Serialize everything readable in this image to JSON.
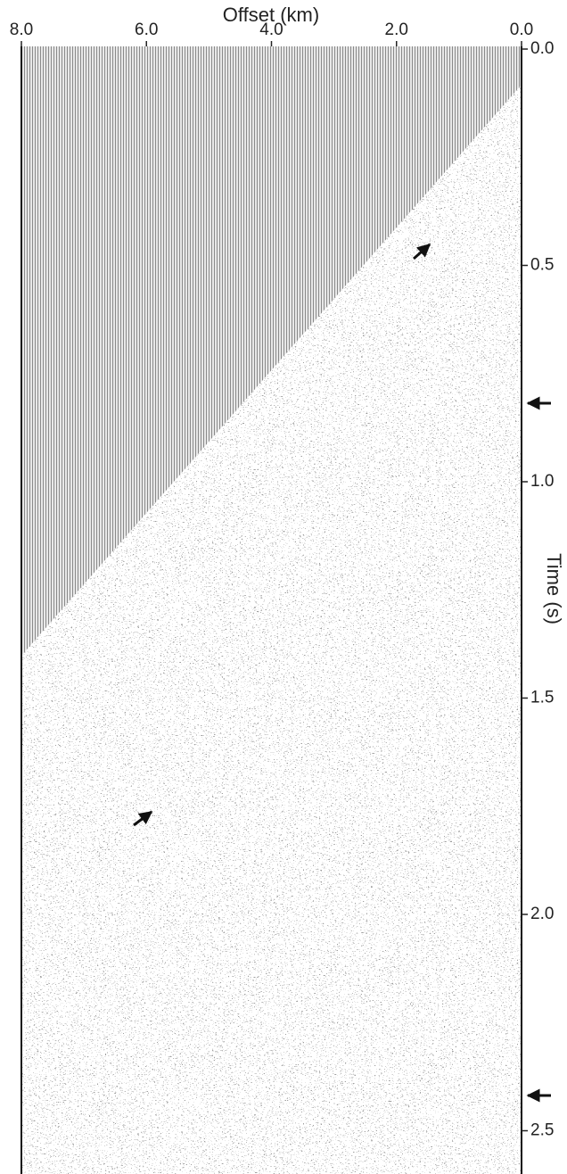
{
  "chart_data": {
    "type": "seismic",
    "x_label": "Offset (km)",
    "y_label": "Time (s)",
    "xlim": [
      8,
      0
    ],
    "ylim": [
      0,
      2.6
    ],
    "xticks": [
      {
        "value": 8,
        "label": "8.0"
      },
      {
        "value": 6,
        "label": "6.0"
      },
      {
        "value": 4,
        "label": "4.0"
      },
      {
        "value": 2,
        "label": "2.0"
      },
      {
        "value": 0,
        "label": "0.0"
      }
    ],
    "yticks": [
      {
        "value": 0,
        "label": "0.0"
      },
      {
        "value": 0.5,
        "label": "0.5"
      },
      {
        "value": 1,
        "label": "1.0"
      },
      {
        "value": 1.5,
        "label": "1.5"
      },
      {
        "value": 2,
        "label": "2.0"
      },
      {
        "value": 2.5,
        "label": "2.5"
      }
    ]
  }
}
